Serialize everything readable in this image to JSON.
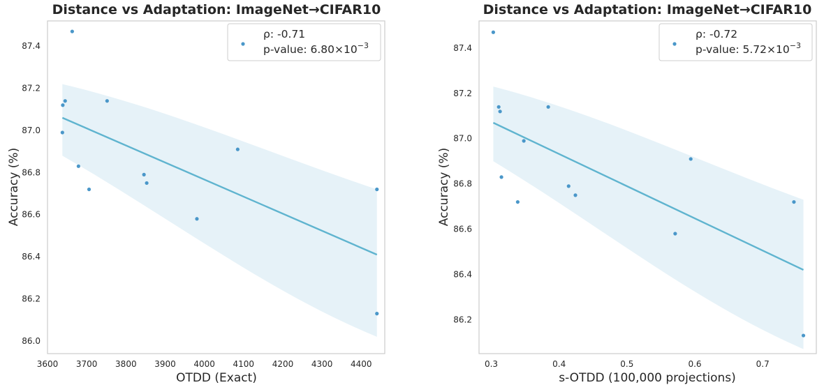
{
  "charts": [
    {
      "id": "left",
      "type": "scatter",
      "title": "Distance vs Adaptation: ImageNet→CIFAR10",
      "xlabel": "OTDD (Exact)",
      "ylabel": "Accuracy (%)",
      "xlim": [
        3600,
        4460
      ],
      "ylim": [
        85.94,
        87.52
      ],
      "xticks": [
        3600,
        3700,
        3800,
        3900,
        4000,
        4100,
        4200,
        4300,
        4400
      ],
      "yticks": [
        86.0,
        86.2,
        86.4,
        86.6,
        86.8,
        87.0,
        87.2,
        87.4
      ],
      "tick_decimals_x": 0,
      "tick_decimals_y": 1,
      "legend": {
        "rho_label": "ρ: -0.71",
        "pvalue_prefix": "p-value: 6.80×10",
        "pvalue_exp": "−3"
      },
      "points": [
        {
          "x": 3663,
          "y": 87.47
        },
        {
          "x": 3645,
          "y": 87.14
        },
        {
          "x": 3639,
          "y": 87.12
        },
        {
          "x": 3638,
          "y": 86.99
        },
        {
          "x": 3679,
          "y": 86.83
        },
        {
          "x": 3706,
          "y": 86.72
        },
        {
          "x": 3752,
          "y": 87.14
        },
        {
          "x": 3846,
          "y": 86.79
        },
        {
          "x": 3853,
          "y": 86.75
        },
        {
          "x": 3981,
          "y": 86.58
        },
        {
          "x": 4085,
          "y": 86.91
        },
        {
          "x": 4440,
          "y": 86.72
        },
        {
          "x": 4440,
          "y": 86.13
        }
      ],
      "regression": {
        "x": [
          3638,
          4440
        ],
        "y": [
          87.06,
          86.41
        ]
      },
      "ci_band": {
        "x": [
          3638,
          4440
        ],
        "lower": [
          86.88,
          86.02
        ],
        "upper": [
          87.22,
          86.72
        ]
      }
    },
    {
      "id": "right",
      "type": "scatter",
      "title": "Distance vs Adaptation: ImageNet→CIFAR10",
      "xlabel": "s-OTDD (100,000 projections)",
      "ylabel": "Accuracy (%)",
      "xlim": [
        0.282,
        0.779
      ],
      "ylim": [
        86.05,
        87.52
      ],
      "xticks": [
        0.3,
        0.4,
        0.5,
        0.6,
        0.7
      ],
      "yticks": [
        86.2,
        86.4,
        86.6,
        86.8,
        87.0,
        87.2,
        87.4
      ],
      "tick_decimals_x": 1,
      "tick_decimals_y": 1,
      "legend": {
        "rho_label": "ρ: -0.72",
        "pvalue_prefix": "p-value: 5.72×10",
        "pvalue_exp": "−3"
      },
      "points": [
        {
          "x": 0.303,
          "y": 87.47
        },
        {
          "x": 0.311,
          "y": 87.14
        },
        {
          "x": 0.313,
          "y": 87.12
        },
        {
          "x": 0.348,
          "y": 86.99
        },
        {
          "x": 0.315,
          "y": 86.83
        },
        {
          "x": 0.339,
          "y": 86.72
        },
        {
          "x": 0.384,
          "y": 87.14
        },
        {
          "x": 0.414,
          "y": 86.79
        },
        {
          "x": 0.424,
          "y": 86.75
        },
        {
          "x": 0.571,
          "y": 86.58
        },
        {
          "x": 0.594,
          "y": 86.91
        },
        {
          "x": 0.746,
          "y": 86.72
        },
        {
          "x": 0.76,
          "y": 86.13
        }
      ],
      "regression": {
        "x": [
          0.303,
          0.76
        ],
        "y": [
          87.07,
          86.42
        ]
      },
      "ci_band": {
        "x": [
          0.303,
          0.76
        ],
        "lower": [
          86.9,
          86.07
        ],
        "upper": [
          87.23,
          86.73
        ]
      }
    }
  ],
  "colors": {
    "point": "#4a97c9",
    "line": "#5fb4cf",
    "band": "#e6f2f8",
    "spine": "#cccccc",
    "legend_border": "#cccccc"
  }
}
